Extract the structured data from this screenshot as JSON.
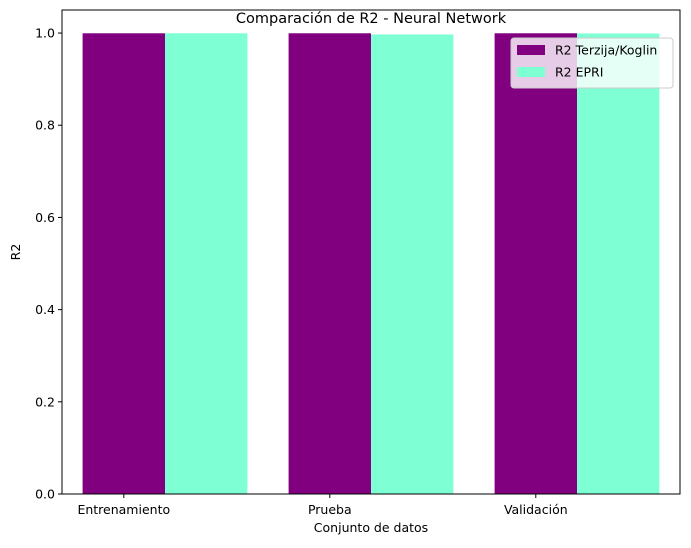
{
  "chart_data": {
    "type": "bar",
    "title": "Comparación de R2 - Neural Network",
    "xlabel": "Conjunto de datos",
    "ylabel": "R2",
    "categories": [
      "Entrenamiento",
      "Prueba",
      "Validación"
    ],
    "series": [
      {
        "name": "R2 Terzija/Koglin",
        "values": [
          0.9995,
          0.9995,
          0.9995
        ],
        "color": "#800080"
      },
      {
        "name": "R2 EPRI",
        "values": [
          0.9995,
          0.997,
          0.999
        ],
        "color": "#7fffd4"
      }
    ],
    "ylim": [
      0,
      1.05
    ],
    "yticks": [
      "0.0",
      "0.2",
      "0.4",
      "0.6",
      "0.8",
      "1.0"
    ],
    "grid": false,
    "legend_position": "top-right"
  }
}
